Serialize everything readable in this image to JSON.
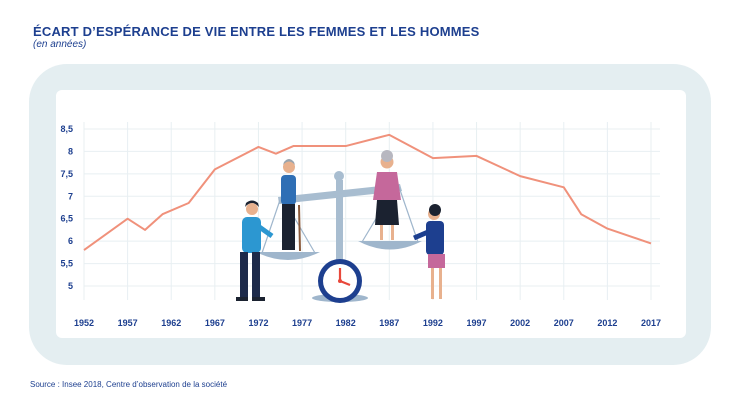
{
  "title": "ÉCART D’ESPÉRANCE DE VIE ENTRE LES FEMMES ET LES HOMMES",
  "subtitle": "(en années)",
  "source": "Source : Insee 2018, Centre d’observation de la société",
  "colors": {
    "line": "#f0917b",
    "text": "#1d3f8f",
    "frame": "#e4eef1",
    "grid": "#e8eff2"
  },
  "chart_data": {
    "type": "line",
    "title": "ÉCART D’ESPÉRANCE DE VIE ENTRE LES FEMMES ET LES HOMMES",
    "ylabel": "(en années)",
    "x_ticks": [
      "1952",
      "1957",
      "1962",
      "1967",
      "1972",
      "1977",
      "1982",
      "1987",
      "1992",
      "1997",
      "2002",
      "2007",
      "2012",
      "2017"
    ],
    "y_ticks": [
      "5",
      "5,5",
      "6",
      "6,5",
      "7",
      "7,5",
      "8",
      "8,5"
    ],
    "ylim": [
      5,
      8.5
    ],
    "xlim": [
      1952,
      2017
    ],
    "grid": true,
    "x": [
      1952,
      1957,
      1959,
      1961,
      1964,
      1967,
      1972,
      1974,
      1976,
      1982,
      1987,
      1992,
      1997,
      2002,
      2007,
      2009,
      2012,
      2017
    ],
    "values": [
      5.8,
      6.5,
      6.25,
      6.6,
      6.85,
      7.6,
      8.1,
      7.95,
      8.12,
      8.12,
      8.37,
      7.85,
      7.9,
      7.45,
      7.2,
      6.6,
      6.28,
      5.95
    ]
  }
}
